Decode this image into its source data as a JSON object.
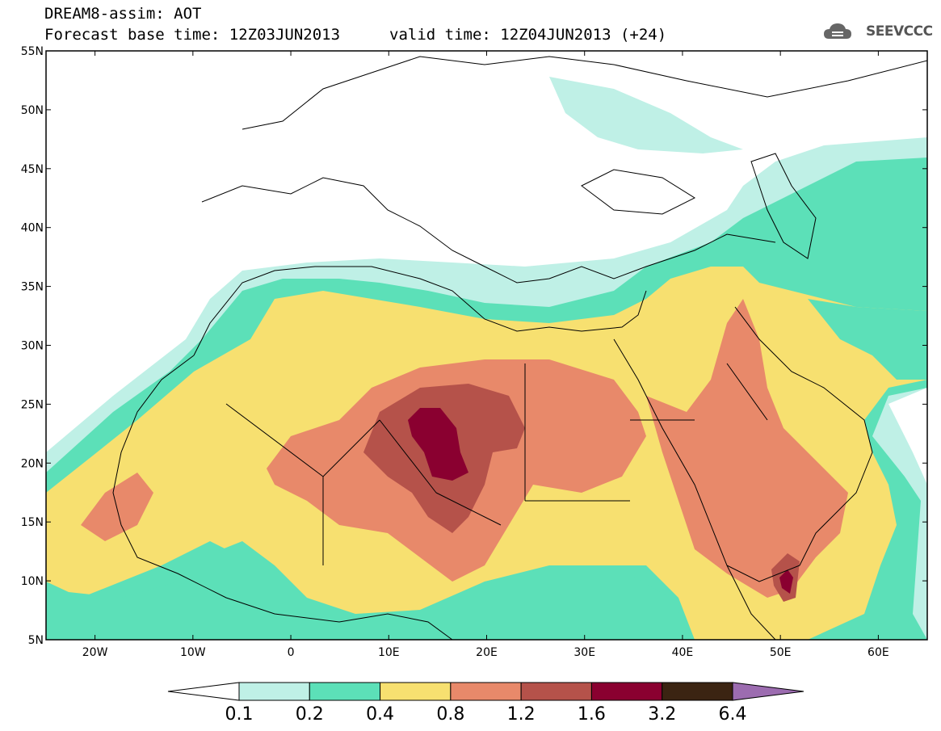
{
  "header": {
    "title": "DREAM8-assim: AOT",
    "base_time": "Forecast base time: 12Z03JUN2013",
    "valid_time": "valid time: 12Z04JUN2013 (+24)"
  },
  "logo": {
    "text": "SEEVCCC",
    "icon": "cloud-logo-icon"
  },
  "axes": {
    "lat_labels": [
      "55N",
      "50N",
      "45N",
      "40N",
      "35N",
      "30N",
      "25N",
      "20N",
      "15N",
      "10N",
      "5N"
    ],
    "lon_labels": [
      "20W",
      "10W",
      "0",
      "10E",
      "20E",
      "30E",
      "40E",
      "50E",
      "60E"
    ]
  },
  "colorbar": {
    "labels": [
      "0.1",
      "0.2",
      "0.4",
      "0.8",
      "1.2",
      "1.6",
      "3.2",
      "6.4"
    ],
    "colors": [
      "#ffffff",
      "#bff0e6",
      "#5ce0b8",
      "#f7e070",
      "#e8896a",
      "#b5524a",
      "#8a0030",
      "#3b2412",
      "#9c6cb0"
    ]
  },
  "colors": {
    "c01": "#bff0e6",
    "c02": "#5ce0b8",
    "c04": "#f7e070",
    "c08": "#e8896a",
    "c12": "#b5524a",
    "c16": "#8a0030"
  }
}
